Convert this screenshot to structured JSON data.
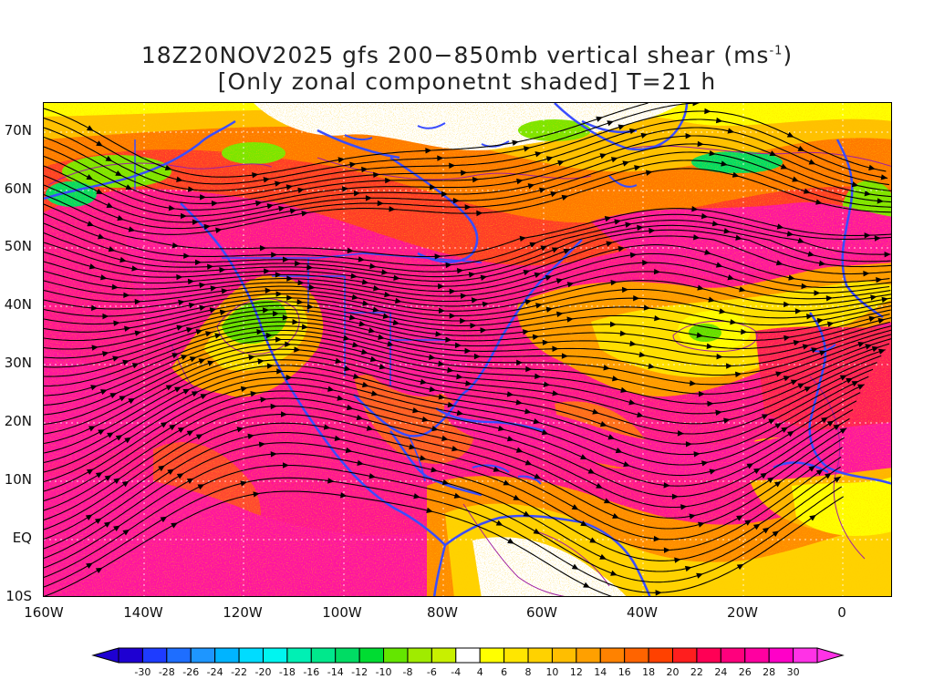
{
  "title": {
    "line1_prefix": "18Z20NOV2025 gfs 200−850mb vertical shear (ms",
    "line1_sup": "-1",
    "line1_suffix": ")",
    "line2": "[Only zonal componetnt shaded] T=21 h"
  },
  "map": {
    "lon_range": [
      -160,
      10
    ],
    "lat_range": [
      -10,
      75
    ],
    "lat_labels": [
      "70N",
      "60N",
      "50N",
      "40N",
      "30N",
      "20N",
      "10N",
      "EQ",
      "10S"
    ],
    "lon_labels": [
      "160W",
      "140W",
      "120W",
      "100W",
      "80W",
      "60W",
      "40W",
      "20W",
      "0"
    ],
    "coastline_color": "#3a4dff",
    "streamline_color": "#000000",
    "contour_color": "#a020a0"
  },
  "colorbar": {
    "labels": [
      "-30",
      "-28",
      "-26",
      "-24",
      "-22",
      "-20",
      "-18",
      "-16",
      "-14",
      "-12",
      "-10",
      "-8",
      "-6",
      "-4",
      "4",
      "6",
      "8",
      "10",
      "12",
      "14",
      "16",
      "18",
      "20",
      "22",
      "24",
      "26",
      "28",
      "30"
    ],
    "colors": [
      "#1e00d2",
      "#1e3cff",
      "#1e6eff",
      "#1e96ff",
      "#00b4ff",
      "#00dcff",
      "#00f5f0",
      "#00f0b4",
      "#00e88c",
      "#00dc64",
      "#00dc32",
      "#64e600",
      "#a0eb00",
      "#c8f000",
      "#ffffff",
      "#ffff00",
      "#ffe600",
      "#ffd200",
      "#ffbe00",
      "#ffa000",
      "#ff8200",
      "#ff6400",
      "#ff4100",
      "#ff1e1e",
      "#ff0055",
      "#ff007d",
      "#ff00a0",
      "#ff00c8",
      "#ff32e6"
    ]
  }
}
